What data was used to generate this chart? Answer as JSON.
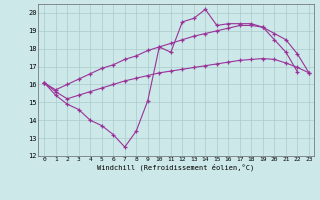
{
  "xlabel": "Windchill (Refroidissement éolien,°C)",
  "bg_color": "#cce8e8",
  "grid_color": "#aacccc",
  "line_color": "#993399",
  "xlim_min": -0.5,
  "xlim_max": 23.4,
  "ylim_min": 12,
  "ylim_max": 20.5,
  "yticks": [
    12,
    13,
    14,
    15,
    16,
    17,
    18,
    19,
    20
  ],
  "xticks": [
    0,
    1,
    2,
    3,
    4,
    5,
    6,
    7,
    8,
    9,
    10,
    11,
    12,
    13,
    14,
    15,
    16,
    17,
    18,
    19,
    20,
    21,
    22,
    23
  ],
  "line1_x": [
    0,
    1,
    2,
    3,
    4,
    5,
    6,
    7,
    8,
    9,
    10,
    11,
    12,
    13,
    14,
    15,
    16,
    17,
    18,
    19,
    20,
    21,
    22
  ],
  "line1_y": [
    16.1,
    15.4,
    14.9,
    14.6,
    14.0,
    13.7,
    13.2,
    12.5,
    13.4,
    15.1,
    18.1,
    17.8,
    19.5,
    19.7,
    20.2,
    19.3,
    19.4,
    19.4,
    19.4,
    19.2,
    18.5,
    17.8,
    16.7
  ],
  "line2_x": [
    0,
    1,
    2,
    3,
    4,
    5,
    6,
    7,
    8,
    9,
    10,
    11,
    12,
    13,
    14,
    15,
    16,
    17,
    18,
    19,
    20,
    21,
    22,
    23
  ],
  "line2_y": [
    16.1,
    15.7,
    16.0,
    16.3,
    16.6,
    16.9,
    17.1,
    17.4,
    17.6,
    17.9,
    18.1,
    18.3,
    18.5,
    18.7,
    18.85,
    19.0,
    19.15,
    19.3,
    19.3,
    19.2,
    18.85,
    18.5,
    17.7,
    16.65
  ],
  "line3_x": [
    0,
    1,
    2,
    3,
    4,
    5,
    6,
    7,
    8,
    9,
    10,
    11,
    12,
    13,
    14,
    15,
    16,
    17,
    18,
    19,
    20,
    21,
    22,
    23
  ],
  "line3_y": [
    16.1,
    15.6,
    15.2,
    15.4,
    15.6,
    15.8,
    16.0,
    16.2,
    16.35,
    16.5,
    16.65,
    16.75,
    16.85,
    16.95,
    17.05,
    17.15,
    17.25,
    17.35,
    17.4,
    17.45,
    17.4,
    17.2,
    16.95,
    16.65
  ]
}
